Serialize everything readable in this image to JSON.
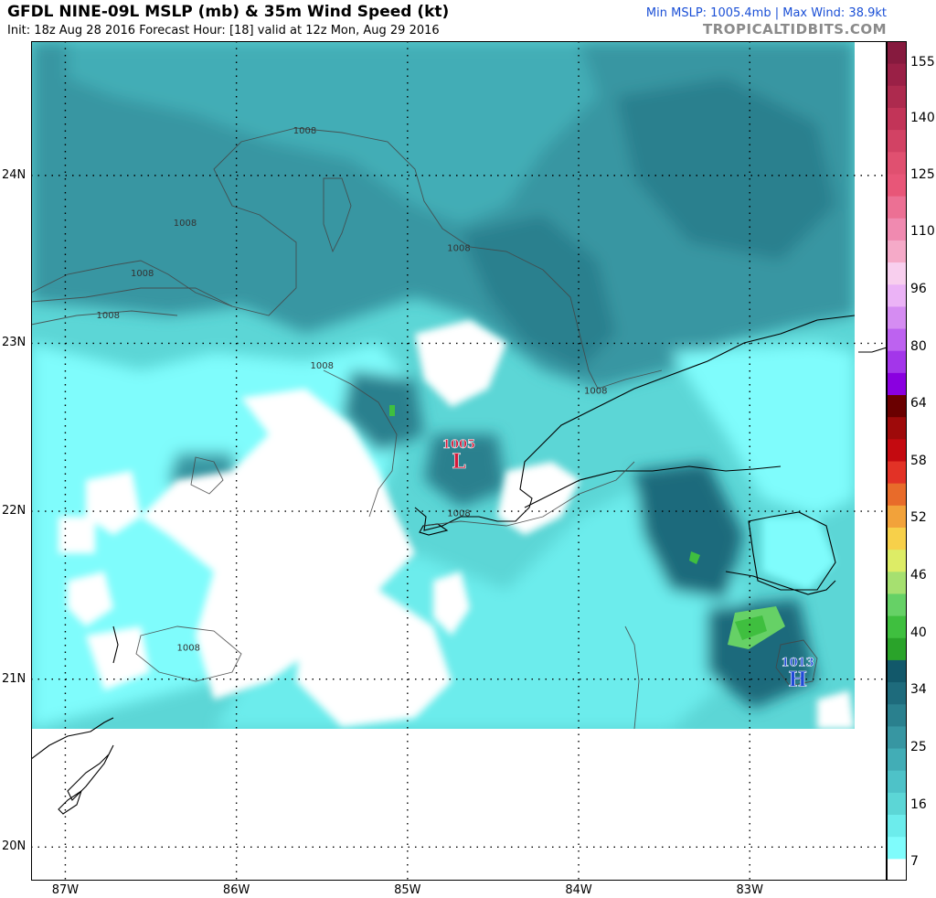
{
  "header": {
    "title": "GFDL NINE-09L MSLP (mb) & 35m Wind Speed (kt)",
    "subtitle": "Init: 18z Aug 28 2016    Forecast Hour: [18]    valid at 12z Mon, Aug 29 2016",
    "stats": "Min MSLP: 1005.4mb | Max Wind: 38.9kt",
    "brand": "TROPICALTIDBITS.COM"
  },
  "map": {
    "lon_range": [
      -87.2,
      -82.2
    ],
    "lat_range": [
      19.8,
      24.8
    ],
    "data_extent": {
      "lon": [
        -87.2,
        -82.4
      ],
      "lat": [
        20.7,
        24.8
      ]
    },
    "lat_ticks": [
      {
        "value": 24,
        "label": "24N"
      },
      {
        "value": 23,
        "label": "23N"
      },
      {
        "value": 22,
        "label": "22N"
      },
      {
        "value": 21,
        "label": "21N"
      },
      {
        "value": 20,
        "label": "20N"
      }
    ],
    "lon_ticks": [
      {
        "value": -87,
        "label": "87W"
      },
      {
        "value": -86,
        "label": "86W"
      },
      {
        "value": -85,
        "label": "85W"
      },
      {
        "value": -84,
        "label": "84W"
      },
      {
        "value": -83,
        "label": "83W"
      }
    ],
    "isobar_labels": [
      {
        "text": "1008",
        "lon": -85.6,
        "lat": 24.25
      },
      {
        "text": "1008",
        "lon": -86.3,
        "lat": 23.7
      },
      {
        "text": "1008",
        "lon": -86.55,
        "lat": 23.4
      },
      {
        "text": "1008",
        "lon": -86.75,
        "lat": 23.15
      },
      {
        "text": "1008",
        "lon": -85.5,
        "lat": 22.85
      },
      {
        "text": "1008",
        "lon": -84.7,
        "lat": 23.55
      },
      {
        "text": "1008",
        "lon": -83.9,
        "lat": 22.7
      },
      {
        "text": "1008",
        "lon": -84.7,
        "lat": 21.97
      },
      {
        "text": "1008",
        "lon": -86.28,
        "lat": 21.17
      }
    ],
    "pressure_centers": [
      {
        "type": "L",
        "value": "1005",
        "lon": -84.7,
        "lat": 22.3,
        "color": "#d6193a"
      },
      {
        "type": "H",
        "value": "1013",
        "lon": -82.72,
        "lat": 21.0,
        "color": "#1f49d8"
      }
    ]
  },
  "colorbar": {
    "label": "35m Wind Speed (kt)",
    "ticks": [
      "155",
      "140",
      "125",
      "110",
      "96",
      "80",
      "64",
      "58",
      "52",
      "46",
      "40",
      "34",
      "25",
      "16",
      "7"
    ],
    "colors": [
      "#ffffff",
      "#7ffcfc",
      "#6cecec",
      "#5cd6d6",
      "#4ec2c8",
      "#42adb6",
      "#3796a2",
      "#2a808e",
      "#1e6b7c",
      "#12586a",
      "#2aa32a",
      "#3fbf3f",
      "#66d166",
      "#a6e070",
      "#ddec66",
      "#f7d04a",
      "#f2a23a",
      "#e86b2a",
      "#e23226",
      "#c40a10",
      "#9e0a0a",
      "#6a0000",
      "#8a00e0",
      "#a336ea",
      "#bd62f0",
      "#d58cf2",
      "#ebb3f6",
      "#f8cfee",
      "#f5aac8",
      "#f08ab0",
      "#ec7094",
      "#e85678",
      "#e05070",
      "#d24264",
      "#c23458",
      "#ad2a4e",
      "#9a2046",
      "#861a3e"
    ]
  }
}
